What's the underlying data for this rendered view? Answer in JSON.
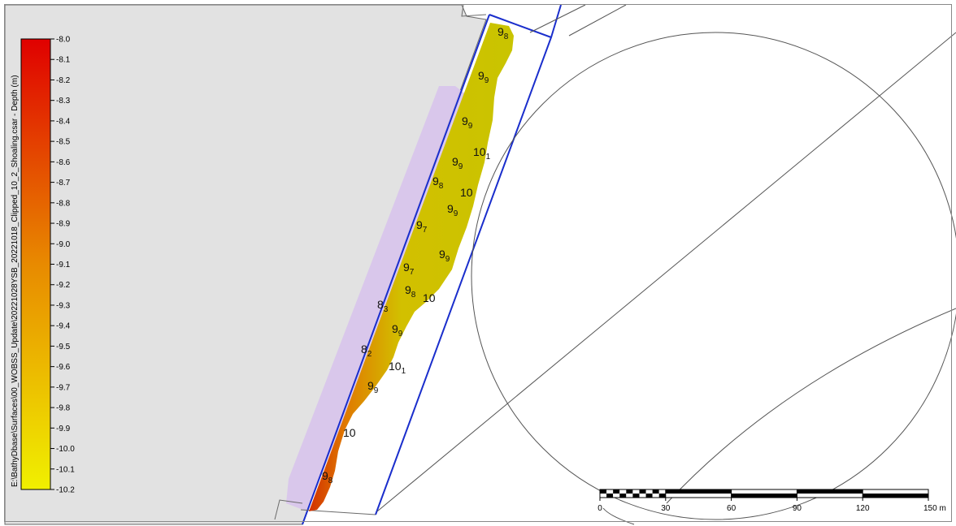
{
  "legend": {
    "title": "E:\\BathyDbase\\Surfaces\\00_WOBSS_Update\\20221028YSB_20221018_Clipped_10_2_Shoaling.csar - Depth (m)",
    "ticks": [
      "-8.0",
      "-8.1",
      "-8.2",
      "-8.3",
      "-8.4",
      "-8.5",
      "-8.6",
      "-8.7",
      "-8.8",
      "-8.9",
      "-9.0",
      "-9.1",
      "-9.2",
      "-9.3",
      "-9.4",
      "-9.5",
      "-9.6",
      "-9.7",
      "-9.8",
      "-9.9",
      "-10.0",
      "-10.1",
      "-10.2"
    ],
    "color_top": "#e00000",
    "color_mid": "#e88a00",
    "color_bottom": "#f0f000"
  },
  "scale_bar": {
    "labels": [
      "0",
      "30",
      "60",
      "90",
      "120",
      "150 m"
    ]
  },
  "soundings": [
    {
      "main": "9",
      "sub": "8"
    },
    {
      "main": "9",
      "sub": "9"
    },
    {
      "main": "9",
      "sub": "9"
    },
    {
      "main": "10",
      "sub": "1"
    },
    {
      "main": "9",
      "sub": "9"
    },
    {
      "main": "9",
      "sub": "8"
    },
    {
      "main": "10",
      "sub": ""
    },
    {
      "main": "9",
      "sub": "9"
    },
    {
      "main": "9",
      "sub": "7"
    },
    {
      "main": "9",
      "sub": "9"
    },
    {
      "main": "9",
      "sub": "7"
    },
    {
      "main": "9",
      "sub": "8"
    },
    {
      "main": "10",
      "sub": ""
    },
    {
      "main": "8",
      "sub": "3"
    },
    {
      "main": "9",
      "sub": "9"
    },
    {
      "main": "8",
      "sub": "2"
    },
    {
      "main": "10",
      "sub": "1"
    },
    {
      "main": "9",
      "sub": "9"
    },
    {
      "main": "10",
      "sub": ""
    },
    {
      "main": "9",
      "sub": "8"
    }
  ],
  "colors": {
    "land": "#e2e2e2",
    "channel_boundary": "#1a2ecc",
    "dredge_band": "#d8c4ec",
    "surface_fill": "#cccc00"
  }
}
